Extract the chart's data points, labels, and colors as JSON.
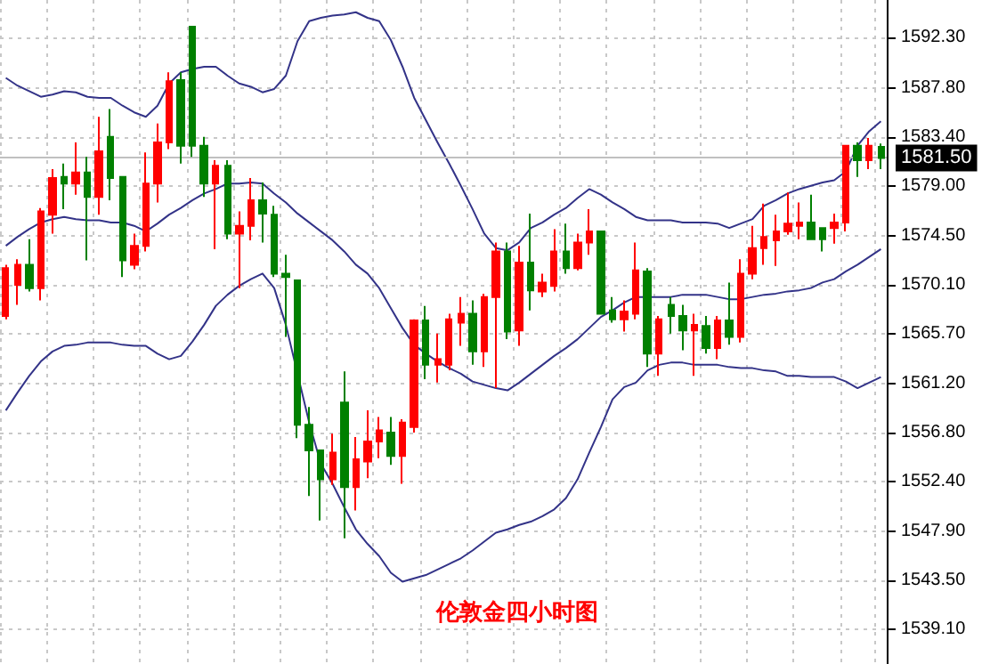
{
  "chart_data": {
    "type": "candlestick",
    "title": "伦敦金四小时图",
    "categories": [
      null,
      null,
      null,
      null,
      null,
      null,
      null,
      null,
      null,
      null,
      null,
      null,
      null,
      null,
      null,
      null,
      null,
      null,
      null,
      null,
      null,
      null,
      null,
      null,
      null,
      null,
      null,
      null,
      null,
      null,
      null,
      null,
      null,
      null,
      null,
      null,
      null,
      null,
      null,
      null,
      null,
      null,
      null,
      null,
      null,
      null,
      null,
      null,
      null,
      null,
      null,
      null,
      null,
      null,
      null,
      null,
      null,
      null,
      null,
      null,
      null,
      null,
      null,
      null,
      null,
      null,
      null,
      null,
      null,
      null,
      null,
      null,
      null,
      null,
      null,
      null
    ],
    "colors": [
      "#ff0000",
      "#ff0000",
      "#008000",
      "#ff0000",
      "#ff0000",
      "#008000",
      "#ff0000",
      "#008000",
      "#ff0000",
      "#008000",
      "#008000",
      "#ff0000",
      "#ff0000",
      "#ff0000",
      "#ff0000",
      "#008000",
      "#008000",
      "#008000",
      "#ff0000",
      "#008000",
      "#ff0000",
      "#ff0000",
      "#008000",
      "#008000",
      "#008000",
      "#008000",
      "#008000",
      "#008000",
      "#ff0000",
      "#008000",
      "#ff0000",
      "#ff0000",
      "#ff0000",
      "#008000",
      "#ff0000",
      "#ff0000",
      "#008000",
      "#ff0000",
      "#ff0000",
      "#ff0000",
      "#008000",
      "#ff0000",
      "#ff0000",
      "#008000",
      "#ff0000",
      "#008000",
      "#ff0000",
      "#ff0000",
      "#008000",
      "#ff0000",
      "#ff0000",
      "#008000",
      "#008000",
      "#ff0000",
      "#ff0000",
      "#008000",
      "#ff0000",
      "#008000",
      "#008000",
      "#ff0000",
      "#008000",
      "#ff0000",
      "#008000",
      "#ff0000",
      "#ff0000",
      "#ff0000",
      "#ff0000",
      "#ff0000",
      "#ff0000",
      "#008000",
      "#008000",
      "#ff0000",
      "#ff0000",
      "#008000",
      "#ff0000",
      "#008000"
    ],
    "ohlc": [
      [
        1567.3,
        1571.9,
        1567.0,
        1571.6
      ],
      [
        1570.1,
        1572.4,
        1568.3,
        1571.9
      ],
      [
        1571.9,
        1574.2,
        1569.5,
        1569.8
      ],
      [
        1569.8,
        1577.0,
        1568.7,
        1576.7
      ],
      [
        1576.4,
        1580.5,
        1574.7,
        1579.7
      ],
      [
        1579.8,
        1581.0,
        1576.9,
        1579.2
      ],
      [
        1579.2,
        1582.9,
        1578.2,
        1580.2
      ],
      [
        1580.2,
        1581.6,
        1572.3,
        1578.0
      ],
      [
        1578.0,
        1585.2,
        1576.4,
        1582.1
      ],
      [
        1583.4,
        1585.9,
        1577.7,
        1579.7
      ],
      [
        1579.8,
        1579.8,
        1570.8,
        1572.3
      ],
      [
        1571.9,
        1574.7,
        1571.5,
        1573.6
      ],
      [
        1573.6,
        1582.0,
        1573.1,
        1579.2
      ],
      [
        1579.2,
        1584.6,
        1577.5,
        1582.9
      ],
      [
        1582.9,
        1589.2,
        1582.3,
        1588.4
      ],
      [
        1588.5,
        1589.2,
        1581.0,
        1582.6
      ],
      [
        1593.3,
        1593.3,
        1581.6,
        1582.6
      ],
      [
        1582.6,
        1583.4,
        1578.0,
        1579.2
      ],
      [
        1579.2,
        1581.3,
        1573.3,
        1580.8
      ],
      [
        1580.8,
        1581.3,
        1574.2,
        1574.7
      ],
      [
        1574.7,
        1576.7,
        1569.8,
        1575.4
      ],
      [
        1575.4,
        1579.7,
        1574.1,
        1577.7
      ],
      [
        1577.7,
        1579.3,
        1573.9,
        1576.5
      ],
      [
        1576.4,
        1577.2,
        1570.8,
        1571.1
      ],
      [
        1571.1,
        1572.8,
        1565.4,
        1570.8
      ],
      [
        1570.5,
        1570.5,
        1556.3,
        1557.5
      ],
      [
        1557.5,
        1559.1,
        1551.1,
        1555.2
      ],
      [
        1555.2,
        1555.2,
        1548.9,
        1552.6
      ],
      [
        1552.6,
        1556.7,
        1552.1,
        1555.0
      ],
      [
        1559.5,
        1562.3,
        1547.3,
        1551.9
      ],
      [
        1551.9,
        1556.4,
        1549.8,
        1554.4
      ],
      [
        1554.2,
        1558.8,
        1552.7,
        1556.0
      ],
      [
        1556.0,
        1558.2,
        1554.5,
        1557.0
      ],
      [
        1556.8,
        1558.2,
        1553.9,
        1554.7
      ],
      [
        1554.7,
        1558.0,
        1552.2,
        1557.7
      ],
      [
        1557.3,
        1567.0,
        1556.8,
        1566.9
      ],
      [
        1566.9,
        1568.2,
        1561.6,
        1562.9
      ],
      [
        1562.9,
        1565.7,
        1561.3,
        1563.4
      ],
      [
        1562.9,
        1567.5,
        1562.4,
        1567.0
      ],
      [
        1566.7,
        1569.0,
        1564.6,
        1567.5
      ],
      [
        1567.5,
        1568.7,
        1562.9,
        1564.1
      ],
      [
        1564.1,
        1569.3,
        1562.7,
        1569.0
      ],
      [
        1569.0,
        1573.9,
        1560.8,
        1573.1
      ],
      [
        1573.1,
        1573.9,
        1565.2,
        1565.9
      ],
      [
        1566.0,
        1573.6,
        1564.6,
        1572.1
      ],
      [
        1572.1,
        1576.5,
        1567.8,
        1569.6
      ],
      [
        1569.5,
        1571.1,
        1569.0,
        1570.3
      ],
      [
        1570.0,
        1575.1,
        1569.5,
        1573.1
      ],
      [
        1573.1,
        1575.6,
        1571.1,
        1571.6
      ],
      [
        1571.6,
        1574.7,
        1571.4,
        1573.9
      ],
      [
        1573.9,
        1576.9,
        1572.8,
        1574.9
      ],
      [
        1574.9,
        1574.9,
        1567.5,
        1567.5
      ],
      [
        1567.8,
        1569.0,
        1566.7,
        1567.0
      ],
      [
        1567.0,
        1568.7,
        1565.9,
        1567.7
      ],
      [
        1567.5,
        1573.9,
        1567.0,
        1571.4
      ],
      [
        1571.3,
        1571.6,
        1562.7,
        1563.9
      ],
      [
        1563.9,
        1567.3,
        1561.9,
        1567.0
      ],
      [
        1568.3,
        1569.0,
        1565.7,
        1567.3
      ],
      [
        1567.3,
        1568.3,
        1564.2,
        1566.0
      ],
      [
        1566.0,
        1567.5,
        1561.9,
        1566.5
      ],
      [
        1566.4,
        1567.3,
        1563.9,
        1564.4
      ],
      [
        1564.4,
        1567.3,
        1563.4,
        1566.9
      ],
      [
        1566.9,
        1570.3,
        1564.7,
        1565.4
      ],
      [
        1565.4,
        1572.4,
        1564.9,
        1571.1
      ],
      [
        1571.1,
        1575.4,
        1570.6,
        1573.4
      ],
      [
        1573.4,
        1577.4,
        1571.9,
        1574.4
      ],
      [
        1574.1,
        1576.4,
        1571.8,
        1574.9
      ],
      [
        1574.9,
        1578.4,
        1574.6,
        1575.6
      ],
      [
        1575.4,
        1577.5,
        1574.2,
        1575.7
      ],
      [
        1575.7,
        1578.2,
        1574.2,
        1574.2
      ],
      [
        1575.2,
        1575.2,
        1573.1,
        1574.2
      ],
      [
        1575.2,
        1576.5,
        1573.8,
        1575.7
      ],
      [
        1575.7,
        1582.6,
        1574.9,
        1582.6
      ],
      [
        1582.6,
        1582.9,
        1579.8,
        1581.3
      ],
      [
        1581.3,
        1583.3,
        1580.5,
        1582.6
      ],
      [
        1582.5,
        1582.8,
        1580.5,
        1581.5
      ]
    ],
    "series": [
      {
        "type": "line",
        "color": "#333388",
        "values": [
          1588.7,
          1588.0,
          1587.5,
          1587.0,
          1587.2,
          1587.5,
          1587.4,
          1587.0,
          1586.9,
          1586.9,
          1586.2,
          1585.6,
          1585.2,
          1586.2,
          1588.2,
          1589.2,
          1589.5,
          1589.7,
          1589.7,
          1588.9,
          1588.2,
          1587.9,
          1587.4,
          1587.7,
          1588.9,
          1592.0,
          1593.8,
          1594.1,
          1594.3,
          1594.4,
          1594.6,
          1594.1,
          1593.8,
          1592.1,
          1589.7,
          1586.9,
          1584.9,
          1582.9,
          1581.0,
          1579.0,
          1576.9,
          1574.7,
          1573.4,
          1573.2,
          1573.9,
          1575.2,
          1575.7,
          1576.4,
          1577.0,
          1577.9,
          1578.7,
          1578.2,
          1577.5,
          1576.9,
          1576.2,
          1575.9,
          1575.9,
          1575.9,
          1575.7,
          1575.7,
          1575.7,
          1575.6,
          1575.2,
          1575.6,
          1576.0,
          1577.2,
          1577.7,
          1578.3,
          1578.7,
          1579.0,
          1579.3,
          1579.5,
          1580.3,
          1582.6,
          1583.9,
          1584.8
        ]
      },
      {
        "type": "line",
        "color": "#333388",
        "values": [
          1573.6,
          1574.4,
          1575.1,
          1575.7,
          1576.0,
          1576.2,
          1576.0,
          1575.9,
          1575.9,
          1575.7,
          1575.7,
          1575.4,
          1574.9,
          1575.6,
          1576.4,
          1577.0,
          1577.7,
          1578.3,
          1578.7,
          1579.2,
          1579.2,
          1579.3,
          1579.2,
          1578.3,
          1577.5,
          1576.5,
          1575.7,
          1574.9,
          1574.1,
          1573.1,
          1571.9,
          1571.1,
          1569.8,
          1568.0,
          1566.2,
          1564.7,
          1563.9,
          1563.2,
          1562.6,
          1562.1,
          1561.4,
          1561.1,
          1560.8,
          1560.6,
          1561.3,
          1562.1,
          1562.9,
          1563.7,
          1564.4,
          1565.2,
          1566.2,
          1567.2,
          1567.8,
          1568.5,
          1569.0,
          1569.0,
          1569.0,
          1569.0,
          1569.2,
          1569.2,
          1569.2,
          1569.0,
          1568.8,
          1568.8,
          1569.0,
          1569.2,
          1569.3,
          1569.5,
          1569.6,
          1569.8,
          1570.3,
          1570.6,
          1571.3,
          1571.9,
          1572.6,
          1573.3
        ]
      },
      {
        "type": "line",
        "color": "#333388",
        "values": [
          1558.8,
          1560.4,
          1561.9,
          1563.2,
          1564.1,
          1564.6,
          1564.7,
          1564.9,
          1564.9,
          1564.9,
          1564.7,
          1564.6,
          1564.6,
          1563.9,
          1563.4,
          1563.7,
          1565.0,
          1566.5,
          1568.2,
          1569.2,
          1570.0,
          1570.6,
          1571.1,
          1569.8,
          1566.5,
          null,
          1557.7,
          1554.0,
          1552.2,
          1550.1,
          1548.1,
          1546.8,
          1545.7,
          1544.2,
          1543.4,
          1543.7,
          1544.0,
          1544.5,
          1545.0,
          1545.5,
          1546.2,
          1547.0,
          1547.8,
          1548.1,
          1548.5,
          1548.8,
          1549.3,
          1549.9,
          1550.9,
          1552.6,
          1555.0,
          1557.3,
          1559.8,
          1560.9,
          1561.3,
          1562.4,
          1562.9,
          1563.1,
          1563.1,
          1562.9,
          1562.9,
          1562.9,
          1562.7,
          1562.6,
          1562.6,
          1562.4,
          1562.3,
          1561.9,
          1561.9,
          1561.8,
          1561.8,
          1561.8,
          1561.4,
          1560.8,
          1561.3,
          1561.8
        ]
      }
    ],
    "ylim": [
      1536,
      1595.7
    ],
    "yticks": [
      {
        "value": 1539.1,
        "label": "1539.10"
      },
      {
        "value": 1543.5,
        "label": "1543.50"
      },
      {
        "value": 1547.9,
        "label": "1547.90"
      },
      {
        "value": 1552.4,
        "label": "1552.40"
      },
      {
        "value": 1556.8,
        "label": "1556.80"
      },
      {
        "value": 1561.2,
        "label": "1561.20"
      },
      {
        "value": 1565.7,
        "label": "1565.70"
      },
      {
        "value": 1570.1,
        "label": "1570.10"
      },
      {
        "value": 1574.5,
        "label": "1574.50"
      },
      {
        "value": 1579,
        "label": "1579.00"
      },
      {
        "value": 1583.4,
        "label": "1583.40"
      },
      {
        "value": 1587.8,
        "label": "1587.80"
      },
      {
        "value": 1592.3,
        "label": "1592.30"
      }
    ],
    "tick_labels": "y",
    "grid": true,
    "ref_lines": [
      {
        "axis": "y",
        "value": 1581.5,
        "label": "1581.50",
        "color": "#c0c0c0"
      }
    ]
  }
}
